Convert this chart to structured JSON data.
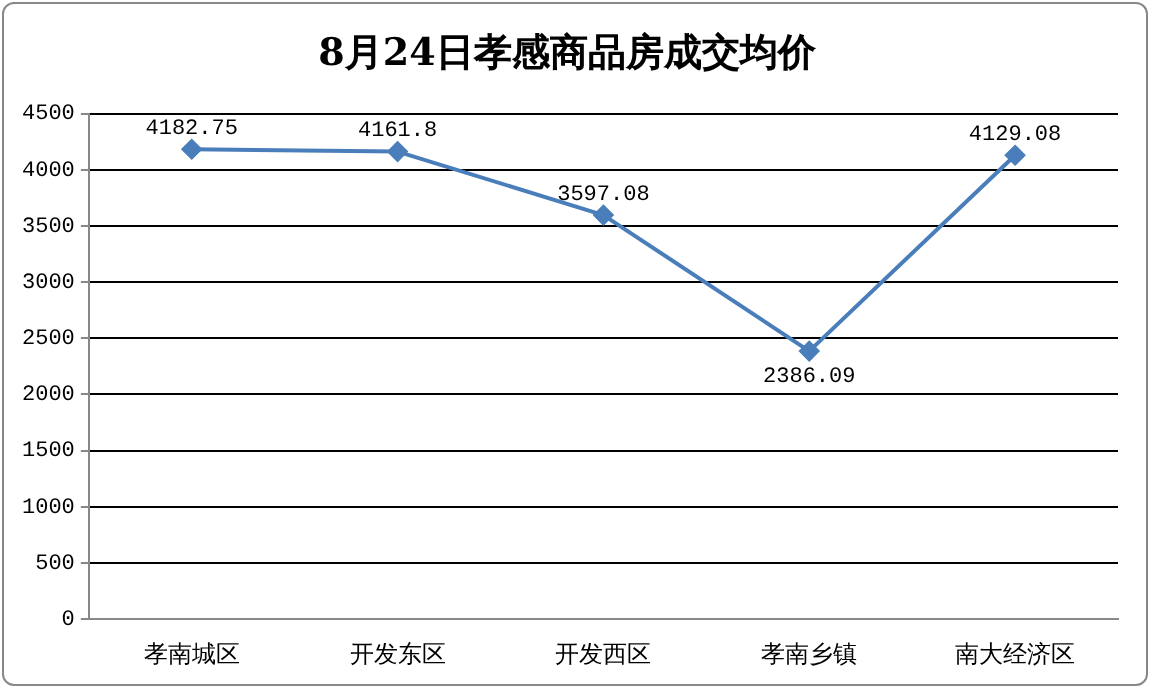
{
  "chart_data": {
    "type": "line",
    "title": "8月24日孝感商品房成交均价",
    "categories": [
      "孝南城区",
      "开发东区",
      "开发西区",
      "孝南乡镇",
      "南大经济区"
    ],
    "series": [
      {
        "color": "#4a7ebb",
        "values": [
          4182.75,
          4161.8,
          3597.08,
          2386.09,
          4129.08
        ]
      }
    ],
    "ylim": [
      0,
      4500
    ],
    "yticks": [
      0,
      500,
      1000,
      1500,
      2000,
      2500,
      3000,
      3500,
      4000,
      4500
    ],
    "grid": "y",
    "legend": false,
    "marker": "diamond",
    "line_style": "solid",
    "data_labels": true
  }
}
